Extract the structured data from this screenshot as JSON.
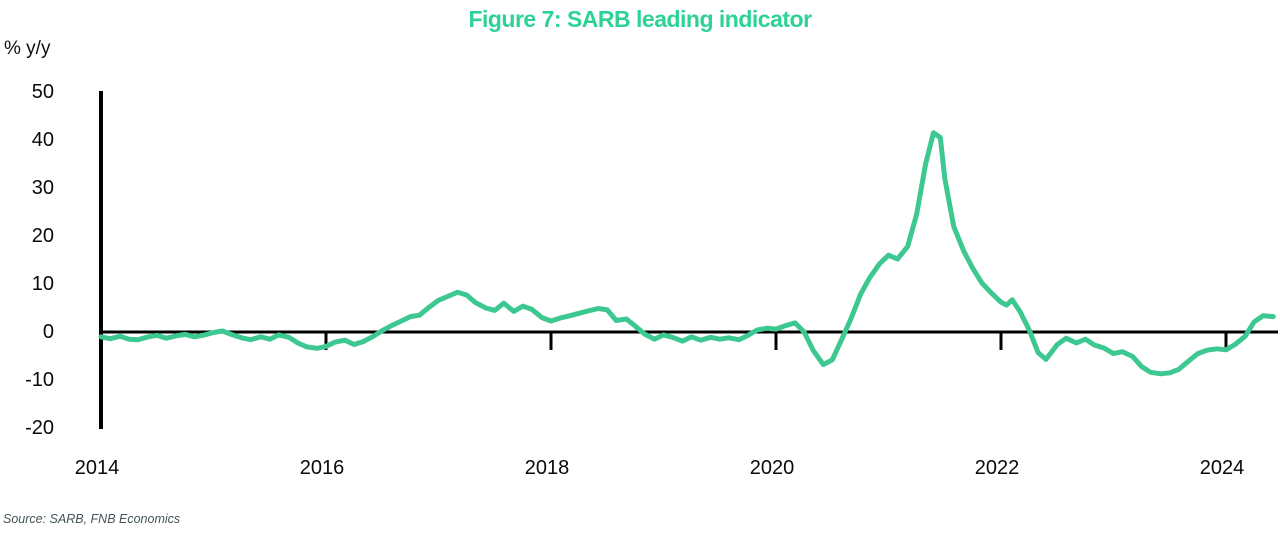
{
  "title": {
    "text": "Figure 7: SARB leading indicator",
    "color": "#2dd296"
  },
  "source_note": "Source: SARB, FNB Economics",
  "chart_data": {
    "type": "line",
    "title": "Figure 7: SARB leading indicator",
    "xlabel": "",
    "ylabel": "% y/y",
    "ylim": [
      -20,
      50
    ],
    "xlim": [
      2014,
      2024.6
    ],
    "y_ticks": [
      50,
      40,
      30,
      20,
      10,
      0,
      -10,
      -20
    ],
    "x_ticks": [
      2014,
      2016,
      2018,
      2020,
      2022,
      2024
    ],
    "grid": false,
    "legend": "none",
    "line_color": "#3ec891",
    "axis_color": "#000000",
    "series": [
      {
        "name": "SARB leading indicator (% y/y)",
        "points": [
          [
            2014.0,
            -1.0
          ],
          [
            2014.08,
            -1.4
          ],
          [
            2014.17,
            -0.9
          ],
          [
            2014.25,
            -1.5
          ],
          [
            2014.33,
            -1.6
          ],
          [
            2014.42,
            -1.0
          ],
          [
            2014.5,
            -0.7
          ],
          [
            2014.58,
            -1.3
          ],
          [
            2014.67,
            -0.8
          ],
          [
            2014.75,
            -0.5
          ],
          [
            2014.83,
            -1.0
          ],
          [
            2014.92,
            -0.6
          ],
          [
            2015.0,
            -0.1
          ],
          [
            2015.08,
            0.2
          ],
          [
            2015.17,
            -0.6
          ],
          [
            2015.25,
            -1.2
          ],
          [
            2015.33,
            -1.6
          ],
          [
            2015.42,
            -1.0
          ],
          [
            2015.5,
            -1.5
          ],
          [
            2015.58,
            -0.6
          ],
          [
            2015.67,
            -1.1
          ],
          [
            2015.75,
            -2.3
          ],
          [
            2015.83,
            -3.1
          ],
          [
            2015.92,
            -3.4
          ],
          [
            2016.0,
            -3.0
          ],
          [
            2016.08,
            -2.1
          ],
          [
            2016.17,
            -1.7
          ],
          [
            2016.25,
            -2.6
          ],
          [
            2016.33,
            -2.0
          ],
          [
            2016.42,
            -0.9
          ],
          [
            2016.5,
            0.3
          ],
          [
            2016.58,
            1.3
          ],
          [
            2016.67,
            2.3
          ],
          [
            2016.75,
            3.2
          ],
          [
            2016.83,
            3.5
          ],
          [
            2016.92,
            5.2
          ],
          [
            2017.0,
            6.6
          ],
          [
            2017.08,
            7.4
          ],
          [
            2017.17,
            8.3
          ],
          [
            2017.25,
            7.7
          ],
          [
            2017.33,
            6.1
          ],
          [
            2017.42,
            5.0
          ],
          [
            2017.5,
            4.5
          ],
          [
            2017.58,
            6.0
          ],
          [
            2017.67,
            4.3
          ],
          [
            2017.75,
            5.4
          ],
          [
            2017.83,
            4.7
          ],
          [
            2017.92,
            3.0
          ],
          [
            2018.0,
            2.3
          ],
          [
            2018.08,
            2.9
          ],
          [
            2018.17,
            3.4
          ],
          [
            2018.25,
            3.9
          ],
          [
            2018.33,
            4.4
          ],
          [
            2018.42,
            4.9
          ],
          [
            2018.5,
            4.6
          ],
          [
            2018.58,
            2.4
          ],
          [
            2018.67,
            2.7
          ],
          [
            2018.75,
            1.2
          ],
          [
            2018.83,
            -0.4
          ],
          [
            2018.92,
            -1.5
          ],
          [
            2019.0,
            -0.6
          ],
          [
            2019.08,
            -1.1
          ],
          [
            2019.17,
            -1.9
          ],
          [
            2019.25,
            -1.0
          ],
          [
            2019.33,
            -1.7
          ],
          [
            2019.42,
            -1.1
          ],
          [
            2019.5,
            -1.5
          ],
          [
            2019.58,
            -1.2
          ],
          [
            2019.67,
            -1.6
          ],
          [
            2019.75,
            -0.7
          ],
          [
            2019.83,
            0.4
          ],
          [
            2019.92,
            0.8
          ],
          [
            2020.0,
            0.6
          ],
          [
            2020.08,
            1.3
          ],
          [
            2020.17,
            1.9
          ],
          [
            2020.25,
            0.0
          ],
          [
            2020.33,
            -3.8
          ],
          [
            2020.42,
            -6.8
          ],
          [
            2020.5,
            -5.8
          ],
          [
            2020.58,
            -1.8
          ],
          [
            2020.67,
            3.0
          ],
          [
            2020.75,
            7.8
          ],
          [
            2020.83,
            11.2
          ],
          [
            2020.92,
            14.2
          ],
          [
            2021.0,
            16.0
          ],
          [
            2021.08,
            15.2
          ],
          [
            2021.17,
            17.8
          ],
          [
            2021.25,
            24.5
          ],
          [
            2021.33,
            35.0
          ],
          [
            2021.4,
            41.5
          ],
          [
            2021.46,
            40.5
          ],
          [
            2021.5,
            32.0
          ],
          [
            2021.58,
            22.0
          ],
          [
            2021.67,
            16.8
          ],
          [
            2021.75,
            13.2
          ],
          [
            2021.83,
            10.2
          ],
          [
            2021.92,
            8.0
          ],
          [
            2022.0,
            6.2
          ],
          [
            2022.05,
            5.6
          ],
          [
            2022.1,
            6.7
          ],
          [
            2022.17,
            4.2
          ],
          [
            2022.25,
            0.5
          ],
          [
            2022.33,
            -4.3
          ],
          [
            2022.4,
            -5.7
          ],
          [
            2022.5,
            -2.6
          ],
          [
            2022.58,
            -1.3
          ],
          [
            2022.67,
            -2.3
          ],
          [
            2022.75,
            -1.5
          ],
          [
            2022.83,
            -2.7
          ],
          [
            2022.92,
            -3.4
          ],
          [
            2023.0,
            -4.5
          ],
          [
            2023.08,
            -4.1
          ],
          [
            2023.17,
            -5.1
          ],
          [
            2023.25,
            -7.2
          ],
          [
            2023.33,
            -8.4
          ],
          [
            2023.42,
            -8.7
          ],
          [
            2023.5,
            -8.5
          ],
          [
            2023.58,
            -7.8
          ],
          [
            2023.67,
            -6.0
          ],
          [
            2023.75,
            -4.5
          ],
          [
            2023.83,
            -3.8
          ],
          [
            2023.92,
            -3.5
          ],
          [
            2024.0,
            -3.7
          ],
          [
            2024.08,
            -2.6
          ],
          [
            2024.17,
            -0.9
          ],
          [
            2024.25,
            2.1
          ],
          [
            2024.33,
            3.4
          ],
          [
            2024.42,
            3.2
          ]
        ]
      }
    ]
  }
}
